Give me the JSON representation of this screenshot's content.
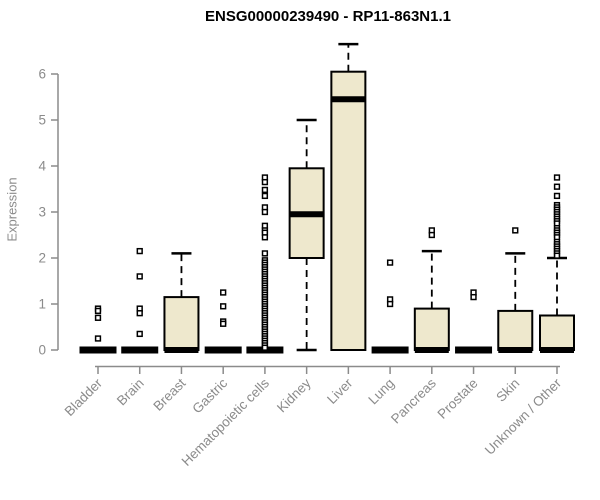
{
  "chart_data": {
    "type": "boxplot",
    "title": "ENSG00000239490 - RP11-863N1.1",
    "xlabel": "",
    "ylabel": "Expression",
    "ylim": [
      0,
      6.7
    ],
    "yticks": [
      0,
      1,
      2,
      3,
      4,
      5,
      6
    ],
    "grid": false,
    "legend": false,
    "categories": [
      "Bladder",
      "Brain",
      "Breast",
      "Gastric",
      "Hematopoietic cells",
      "Kidney",
      "Liver",
      "Lung",
      "Pancreas",
      "Prostate",
      "Skin",
      "Unknown / Other"
    ],
    "boxes": [
      {
        "category": "Bladder",
        "whisker_low": 0,
        "q1": 0,
        "median": 0,
        "q3": 0,
        "whisker_high": 0,
        "outliers": [
          0.9,
          0.85,
          0.7,
          0.25
        ]
      },
      {
        "category": "Brain",
        "whisker_low": 0,
        "q1": 0,
        "median": 0,
        "q3": 0,
        "whisker_high": 0,
        "outliers": [
          2.15,
          1.6,
          0.9,
          0.8,
          0.35
        ]
      },
      {
        "category": "Breast",
        "whisker_low": 0,
        "q1": 0,
        "median": 0,
        "q3": 1.15,
        "whisker_high": 2.1,
        "outliers": []
      },
      {
        "category": "Gastric",
        "whisker_low": 0,
        "q1": 0,
        "median": 0,
        "q3": 0,
        "whisker_high": 0,
        "outliers": [
          1.25,
          0.95,
          0.62,
          0.57
        ]
      },
      {
        "category": "Hematopoietic cells",
        "whisker_low": 0,
        "q1": 0,
        "median": 0,
        "q3": 0,
        "whisker_high": 0,
        "outliers": [
          3.75,
          3.65,
          3.48,
          3.35,
          3.1,
          3.0,
          2.7,
          2.6,
          2.55,
          2.45,
          2.1,
          1.95,
          1.9,
          1.85,
          1.8,
          1.75,
          1.7,
          1.65,
          1.6,
          1.55,
          1.5,
          1.45,
          1.4,
          1.35,
          1.3,
          1.25,
          1.2,
          1.15,
          1.1,
          1.05,
          1.0,
          0.95,
          0.9,
          0.85,
          0.8,
          0.75,
          0.7,
          0.65,
          0.6,
          0.55,
          0.5,
          0.45,
          0.4,
          0.35,
          0.3,
          0.25,
          0.2,
          0.15,
          0.1,
          0.05
        ]
      },
      {
        "category": "Kidney",
        "whisker_low": 0,
        "q1": 2.0,
        "median": 2.95,
        "q3": 3.95,
        "whisker_high": 5.0,
        "outliers": []
      },
      {
        "category": "Liver",
        "whisker_low": 0,
        "q1": 0,
        "median": 5.45,
        "q3": 6.05,
        "whisker_high": 6.65,
        "outliers": []
      },
      {
        "category": "Lung",
        "whisker_low": 0,
        "q1": 0,
        "median": 0,
        "q3": 0,
        "whisker_high": 0,
        "outliers": [
          1.9,
          1.1,
          1.0
        ]
      },
      {
        "category": "Pancreas",
        "whisker_low": 0,
        "q1": 0,
        "median": 0,
        "q3": 0.9,
        "whisker_high": 2.15,
        "outliers": [
          2.6,
          2.5
        ]
      },
      {
        "category": "Prostate",
        "whisker_low": 0,
        "q1": 0,
        "median": 0,
        "q3": 0,
        "whisker_high": 0,
        "outliers": [
          1.25,
          1.15
        ]
      },
      {
        "category": "Skin",
        "whisker_low": 0,
        "q1": 0,
        "median": 0,
        "q3": 0.85,
        "whisker_high": 2.1,
        "outliers": [
          2.6
        ]
      },
      {
        "category": "Unknown / Other",
        "whisker_low": 0,
        "q1": 0,
        "median": 0,
        "q3": 0.75,
        "whisker_high": 2.0,
        "outliers": [
          3.75,
          3.55,
          3.35,
          3.15,
          3.1,
          3.05,
          3.0,
          2.95,
          2.9,
          2.85,
          2.8,
          2.75,
          2.65,
          2.6,
          2.55,
          2.5,
          2.45,
          2.35,
          2.3,
          2.25,
          2.2,
          2.15,
          2.1,
          2.05
        ]
      }
    ],
    "colors": {
      "box_fill": "#EEE8CD",
      "box_stroke": "#000000",
      "median": "#000000",
      "whisker": "#000000",
      "outlier_fill": "#FFFFFF",
      "outlier_stroke": "#000000",
      "axis": "#8B8B8B",
      "title": "#000000",
      "background": "#FFFFFF"
    }
  }
}
